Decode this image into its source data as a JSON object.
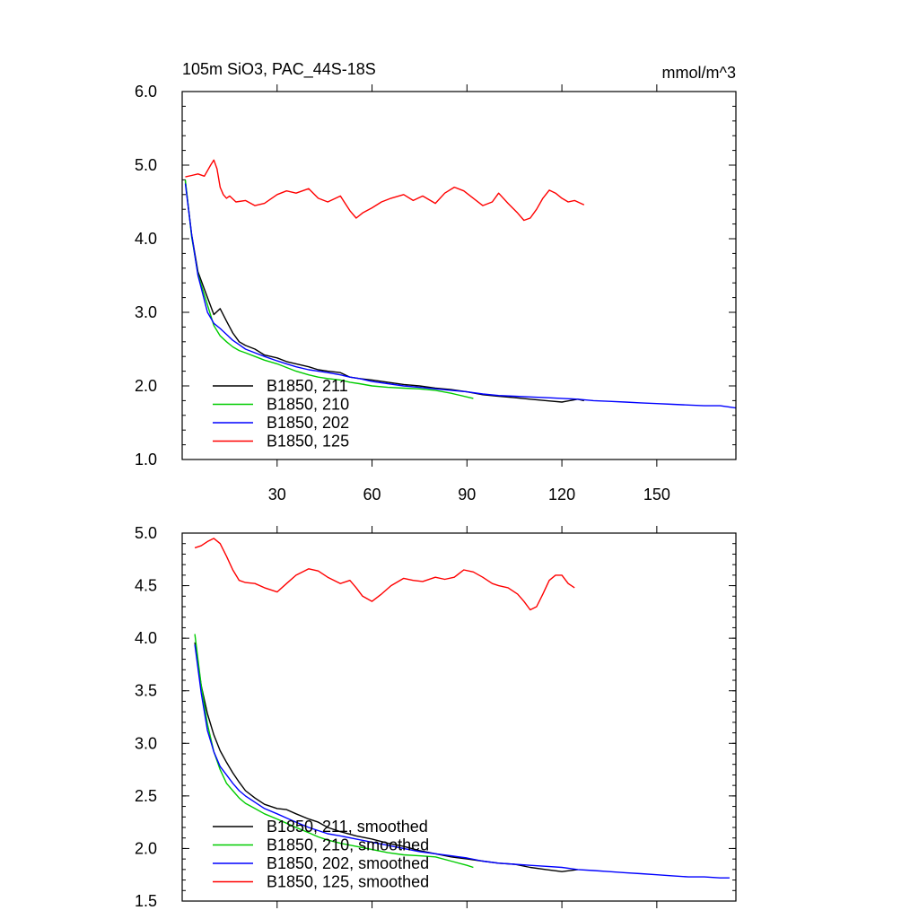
{
  "chart_data": [
    {
      "type": "line",
      "title": "105m SiO3, PAC_44S-18S",
      "units": "mmol/m^3",
      "xlim": [
        0,
        175
      ],
      "ylim": [
        1.0,
        6.0
      ],
      "yticks": [
        "1.0",
        "2.0",
        "3.0",
        "4.0",
        "5.0",
        "6.0"
      ],
      "xticks": [
        "30",
        "60",
        "90",
        "120",
        "150"
      ],
      "legend_position": "bottom-left",
      "series": [
        {
          "name": "B1850, 211",
          "color": "#000000",
          "x": [
            1,
            3,
            5,
            8,
            10,
            12,
            14,
            16,
            18,
            20,
            23,
            26,
            30,
            33,
            36,
            40,
            43,
            46,
            50,
            53,
            56,
            60,
            65,
            70,
            75,
            80,
            85,
            90,
            95,
            100,
            105,
            110,
            115,
            120,
            125,
            127
          ],
          "y": [
            4.78,
            4.05,
            3.55,
            3.2,
            2.97,
            3.05,
            2.88,
            2.72,
            2.6,
            2.55,
            2.5,
            2.42,
            2.38,
            2.33,
            2.3,
            2.26,
            2.22,
            2.2,
            2.18,
            2.12,
            2.1,
            2.08,
            2.05,
            2.02,
            2.0,
            1.97,
            1.95,
            1.92,
            1.88,
            1.86,
            1.84,
            1.82,
            1.8,
            1.78,
            1.82,
            1.8
          ]
        },
        {
          "name": "B1850, 210",
          "color": "#00cc00",
          "x": [
            1,
            3,
            5,
            8,
            10,
            12,
            14,
            16,
            18,
            20,
            23,
            26,
            30,
            33,
            36,
            40,
            43,
            46,
            50,
            53,
            56,
            60,
            65,
            70,
            75,
            80,
            85,
            90,
            92
          ],
          "y": [
            4.8,
            4.02,
            3.52,
            3.1,
            2.82,
            2.68,
            2.6,
            2.53,
            2.48,
            2.45,
            2.4,
            2.35,
            2.3,
            2.25,
            2.2,
            2.15,
            2.12,
            2.1,
            2.08,
            2.05,
            2.03,
            2.0,
            1.98,
            1.97,
            1.96,
            1.94,
            1.9,
            1.85,
            1.83
          ]
        },
        {
          "name": "B1850, 202",
          "color": "#0000ff",
          "x": [
            1,
            3,
            5,
            8,
            10,
            12,
            14,
            16,
            18,
            20,
            23,
            26,
            30,
            33,
            36,
            40,
            43,
            46,
            50,
            53,
            56,
            60,
            65,
            70,
            75,
            80,
            85,
            90,
            95,
            100,
            105,
            110,
            115,
            120,
            125,
            130,
            135,
            140,
            145,
            150,
            155,
            160,
            165,
            170,
            175
          ],
          "y": [
            4.75,
            4.05,
            3.5,
            3.0,
            2.85,
            2.78,
            2.7,
            2.62,
            2.56,
            2.5,
            2.45,
            2.4,
            2.34,
            2.3,
            2.26,
            2.22,
            2.2,
            2.18,
            2.15,
            2.12,
            2.1,
            2.06,
            2.03,
            2.0,
            1.98,
            1.96,
            1.94,
            1.92,
            1.89,
            1.87,
            1.86,
            1.85,
            1.84,
            1.83,
            1.82,
            1.8,
            1.79,
            1.78,
            1.77,
            1.76,
            1.75,
            1.74,
            1.73,
            1.73,
            1.7
          ]
        },
        {
          "name": "B1850, 125",
          "color": "#ff0000",
          "x": [
            1,
            3,
            5,
            7,
            9,
            10,
            11,
            12,
            13,
            14,
            15,
            17,
            20,
            23,
            26,
            30,
            33,
            36,
            40,
            43,
            46,
            50,
            53,
            55,
            57,
            60,
            63,
            66,
            70,
            73,
            76,
            80,
            83,
            86,
            89,
            92,
            95,
            98,
            100,
            103,
            106,
            108,
            110,
            112,
            114,
            116,
            118,
            120,
            122,
            124,
            126,
            127
          ],
          "y": [
            4.84,
            4.86,
            4.88,
            4.85,
            5.0,
            5.07,
            4.95,
            4.7,
            4.6,
            4.55,
            4.58,
            4.5,
            4.52,
            4.45,
            4.48,
            4.6,
            4.65,
            4.62,
            4.68,
            4.55,
            4.5,
            4.58,
            4.38,
            4.28,
            4.35,
            4.42,
            4.5,
            4.55,
            4.6,
            4.52,
            4.58,
            4.48,
            4.62,
            4.7,
            4.65,
            4.55,
            4.45,
            4.5,
            4.62,
            4.48,
            4.35,
            4.25,
            4.28,
            4.4,
            4.55,
            4.66,
            4.62,
            4.55,
            4.5,
            4.52,
            4.48,
            4.46
          ]
        }
      ]
    },
    {
      "type": "line",
      "xlim": [
        0,
        175
      ],
      "ylim": [
        1.5,
        5.0
      ],
      "yticks": [
        "1.5",
        "2.0",
        "2.5",
        "3.0",
        "3.5",
        "4.0",
        "4.5",
        "5.0"
      ],
      "legend_position": "bottom-left",
      "series": [
        {
          "name": "B1850, 211, smoothed",
          "color": "#000000",
          "x": [
            4,
            6,
            8,
            10,
            12,
            14,
            16,
            18,
            20,
            23,
            26,
            30,
            33,
            36,
            40,
            43,
            46,
            50,
            55,
            60,
            65,
            70,
            75,
            80,
            85,
            90,
            95,
            100,
            105,
            110,
            115,
            120,
            125
          ],
          "y": [
            3.96,
            3.55,
            3.28,
            3.08,
            2.93,
            2.82,
            2.72,
            2.63,
            2.55,
            2.48,
            2.42,
            2.38,
            2.37,
            2.33,
            2.28,
            2.25,
            2.2,
            2.16,
            2.12,
            2.09,
            2.05,
            2.02,
            1.98,
            1.95,
            1.92,
            1.9,
            1.88,
            1.86,
            1.85,
            1.82,
            1.8,
            1.78,
            1.8
          ]
        },
        {
          "name": "B1850, 210, smoothed",
          "color": "#00cc00",
          "x": [
            4,
            6,
            8,
            10,
            12,
            14,
            16,
            18,
            20,
            23,
            26,
            30,
            33,
            36,
            40,
            43,
            46,
            50,
            55,
            60,
            65,
            70,
            75,
            80,
            85,
            90,
            92
          ],
          "y": [
            4.04,
            3.55,
            3.18,
            2.92,
            2.75,
            2.62,
            2.55,
            2.48,
            2.43,
            2.38,
            2.33,
            2.28,
            2.24,
            2.2,
            2.15,
            2.11,
            2.08,
            2.05,
            2.02,
            1.99,
            1.96,
            1.94,
            1.93,
            1.92,
            1.88,
            1.84,
            1.82
          ]
        },
        {
          "name": "B1850, 202, smoothed",
          "color": "#0000ff",
          "x": [
            4,
            6,
            8,
            10,
            12,
            14,
            16,
            18,
            20,
            23,
            26,
            30,
            33,
            36,
            40,
            43,
            46,
            50,
            55,
            60,
            65,
            70,
            75,
            80,
            85,
            90,
            95,
            100,
            105,
            110,
            115,
            120,
            125,
            130,
            135,
            140,
            145,
            150,
            155,
            160,
            165,
            170,
            173
          ],
          "y": [
            3.94,
            3.48,
            3.12,
            2.92,
            2.78,
            2.7,
            2.62,
            2.55,
            2.5,
            2.44,
            2.38,
            2.33,
            2.29,
            2.25,
            2.2,
            2.17,
            2.14,
            2.12,
            2.09,
            2.06,
            2.03,
            2.0,
            1.97,
            1.95,
            1.93,
            1.91,
            1.88,
            1.86,
            1.85,
            1.84,
            1.83,
            1.82,
            1.8,
            1.79,
            1.78,
            1.77,
            1.76,
            1.75,
            1.74,
            1.73,
            1.73,
            1.72,
            1.72
          ]
        },
        {
          "name": "B1850, 125, smoothed",
          "color": "#ff0000",
          "x": [
            4,
            6,
            8,
            10,
            12,
            14,
            16,
            18,
            20,
            23,
            26,
            30,
            33,
            36,
            40,
            43,
            46,
            50,
            53,
            55,
            57,
            60,
            63,
            66,
            70,
            73,
            76,
            80,
            83,
            86,
            89,
            92,
            95,
            98,
            100,
            103,
            106,
            108,
            110,
            112,
            114,
            116,
            118,
            120,
            122,
            124
          ],
          "y": [
            4.86,
            4.88,
            4.92,
            4.95,
            4.9,
            4.78,
            4.65,
            4.55,
            4.53,
            4.52,
            4.48,
            4.44,
            4.52,
            4.6,
            4.66,
            4.64,
            4.58,
            4.52,
            4.55,
            4.48,
            4.4,
            4.35,
            4.42,
            4.5,
            4.57,
            4.55,
            4.54,
            4.58,
            4.56,
            4.58,
            4.65,
            4.63,
            4.58,
            4.52,
            4.5,
            4.48,
            4.42,
            4.35,
            4.27,
            4.3,
            4.42,
            4.55,
            4.6,
            4.6,
            4.52,
            4.48
          ]
        }
      ]
    }
  ]
}
